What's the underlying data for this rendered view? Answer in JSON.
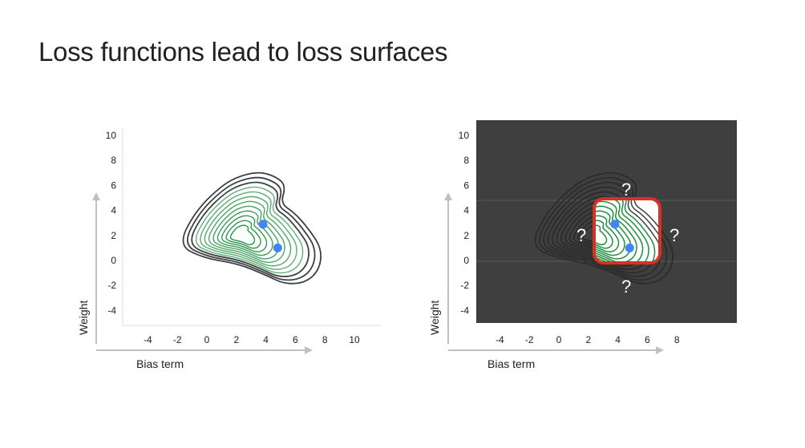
{
  "slide": {
    "title": "Loss functions lead to loss surfaces"
  },
  "colors": {
    "contour_dark": "#3c4043",
    "contour_green": "#1e8e3e",
    "point": "#4285f4",
    "axis_arrow": "#bdc1c6",
    "dark_panel": "#3f3f3f",
    "highlight_box": "#d93025"
  },
  "chart_data": [
    {
      "type": "contour",
      "name": "full-loss-surface",
      "xlabel": "Bias term",
      "ylabel": "Weight",
      "x_ticks": [
        "-4",
        "-2",
        "0",
        "2",
        "4",
        "6",
        "8",
        "10"
      ],
      "y_ticks": [
        "10",
        "8",
        "6",
        "4",
        "2",
        "0",
        "-2",
        "-4"
      ],
      "xlim": [
        -6,
        12
      ],
      "ylim": [
        -5,
        11
      ],
      "points": [
        {
          "x": 3.8,
          "y": 2.9
        },
        {
          "x": 4.8,
          "y": 1.0
        }
      ]
    },
    {
      "type": "contour",
      "name": "partially-explored-loss-surface",
      "xlabel": "Bias term",
      "ylabel": "Weight",
      "x_ticks": [
        "-4",
        "-2",
        "0",
        "2",
        "4",
        "6",
        "8"
      ],
      "y_ticks": [
        "10",
        "8",
        "6",
        "4",
        "2",
        "0",
        "-2",
        "-4"
      ],
      "xlim": [
        -6,
        12
      ],
      "ylim": [
        -5,
        11
      ],
      "points": [
        {
          "x": 3.8,
          "y": 2.9
        },
        {
          "x": 4.8,
          "y": 1.0
        }
      ],
      "unknown_marker": "?",
      "highlight_region": {
        "x": [
          2.4,
          6.6
        ],
        "y": [
          -0.3,
          4.8
        ]
      }
    }
  ]
}
